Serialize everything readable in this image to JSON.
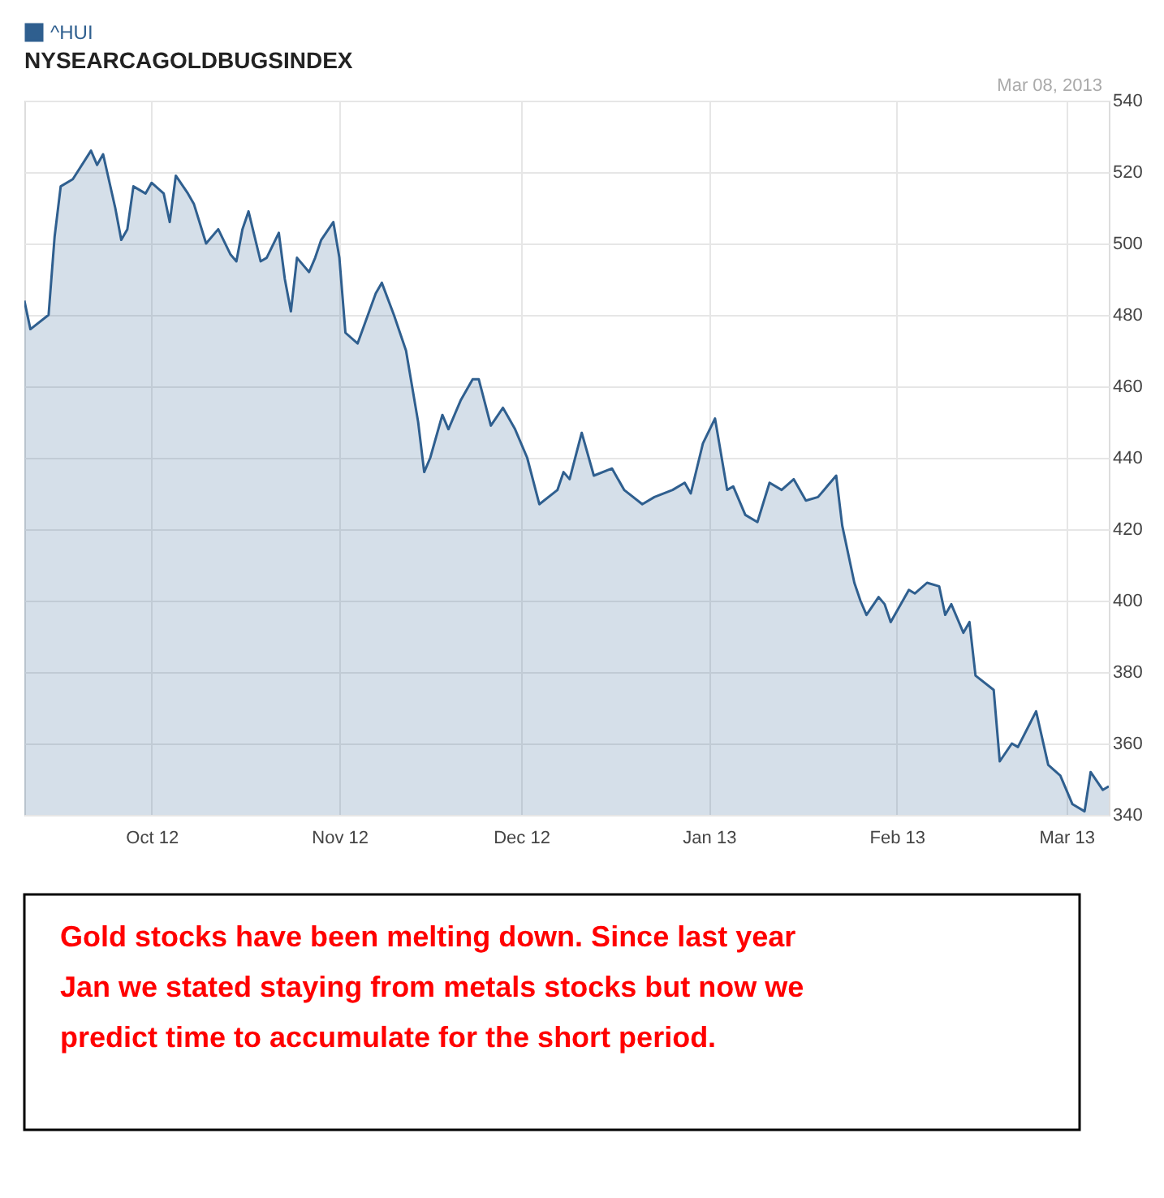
{
  "chart_data": {
    "type": "area",
    "title": "NYSEARCAGOLDBUGSINDEX",
    "x": [
      "2012-09-10",
      "2012-09-11",
      "2012-09-14",
      "2012-09-15",
      "2012-09-16",
      "2012-09-18",
      "2012-09-21",
      "2012-09-22",
      "2012-09-23",
      "2012-09-25",
      "2012-09-26",
      "2012-09-27",
      "2012-09-28",
      "2012-09-30",
      "2012-10-01",
      "2012-10-03",
      "2012-10-04",
      "2012-10-05",
      "2012-10-07",
      "2012-10-08",
      "2012-10-10",
      "2012-10-12",
      "2012-10-14",
      "2012-10-15",
      "2012-10-16",
      "2012-10-17",
      "2012-10-19",
      "2012-10-20",
      "2012-10-22",
      "2012-10-23",
      "2012-10-24",
      "2012-10-25",
      "2012-10-27",
      "2012-10-28",
      "2012-10-29",
      "2012-10-31",
      "2012-11-01",
      "2012-11-02",
      "2012-11-04",
      "2012-11-07",
      "2012-11-08",
      "2012-11-10",
      "2012-11-12",
      "2012-11-14",
      "2012-11-15",
      "2012-11-16",
      "2012-11-18",
      "2012-11-19",
      "2012-11-21",
      "2012-11-23",
      "2012-11-24",
      "2012-11-26",
      "2012-11-28",
      "2012-11-30",
      "2012-12-02",
      "2012-12-04",
      "2012-12-07",
      "2012-12-08",
      "2012-12-09",
      "2012-12-11",
      "2012-12-13",
      "2012-12-16",
      "2012-12-18",
      "2012-12-21",
      "2012-12-23",
      "2012-12-26",
      "2012-12-28",
      "2012-12-29",
      "2012-12-31",
      "2013-01-02",
      "2013-01-04",
      "2013-01-05",
      "2013-01-07",
      "2013-01-09",
      "2013-01-11",
      "2013-01-13",
      "2013-01-15",
      "2013-01-17",
      "2013-01-19",
      "2013-01-22",
      "2013-01-23",
      "2013-01-25",
      "2013-01-26",
      "2013-01-27",
      "2013-01-29",
      "2013-01-30",
      "2013-01-31",
      "2013-02-02",
      "2013-02-03",
      "2013-02-04",
      "2013-02-06",
      "2013-02-08",
      "2013-02-09",
      "2013-02-10",
      "2013-02-12",
      "2013-02-13",
      "2013-02-14",
      "2013-02-17",
      "2013-02-18",
      "2013-02-20",
      "2013-02-21",
      "2013-02-24",
      "2013-02-26",
      "2013-02-28",
      "2013-03-02",
      "2013-03-04",
      "2013-03-05",
      "2013-03-07",
      "2013-03-08"
    ],
    "series": [
      {
        "name": "^HUI",
        "color": "#2f5f8f",
        "values": [
          484,
          476,
          480,
          502,
          516,
          518,
          526,
          522,
          525,
          510,
          501,
          504,
          516,
          514,
          517,
          514,
          506,
          519,
          514,
          511,
          500,
          504,
          497,
          495,
          504,
          509,
          495,
          496,
          503,
          490,
          481,
          496,
          492,
          496,
          501,
          506,
          496,
          475,
          472,
          486,
          489,
          480,
          470,
          450,
          436,
          440,
          452,
          448,
          456,
          462,
          462,
          449,
          454,
          448,
          440,
          427,
          431,
          436,
          434,
          447,
          435,
          437,
          431,
          427,
          429,
          431,
          433,
          430,
          444,
          451,
          431,
          432,
          424,
          422,
          433,
          431,
          434,
          428,
          429,
          435,
          421,
          405,
          400,
          396,
          401,
          399,
          394,
          400,
          403,
          402,
          405,
          404,
          396,
          399,
          391,
          394,
          379,
          375,
          355,
          360,
          359,
          369,
          354,
          351,
          343,
          341,
          352,
          347,
          348
        ]
      }
    ],
    "xlim": [
      "2012-09-10",
      "2013-03-08"
    ],
    "xticks": [
      {
        "value": "2012-10-01",
        "label": "Oct 12"
      },
      {
        "value": "2012-11-01",
        "label": "Nov 12"
      },
      {
        "value": "2012-12-01",
        "label": "Dec 12"
      },
      {
        "value": "2013-01-01",
        "label": "Jan 13"
      },
      {
        "value": "2013-02-01",
        "label": "Feb 13"
      },
      {
        "value": "2013-03-01",
        "label": "Mar 13"
      }
    ],
    "ylim": [
      340,
      540
    ],
    "yticks": [
      340,
      360,
      380,
      400,
      420,
      440,
      460,
      480,
      500,
      520,
      540
    ],
    "grid": true,
    "legend": "top left",
    "annotations": [
      "Mar 08, 2013",
      "Gold stocks have been melting down. Since last year Jan we stated staying from metals stocks but now we predict time to accumulate for the short period."
    ]
  }
}
